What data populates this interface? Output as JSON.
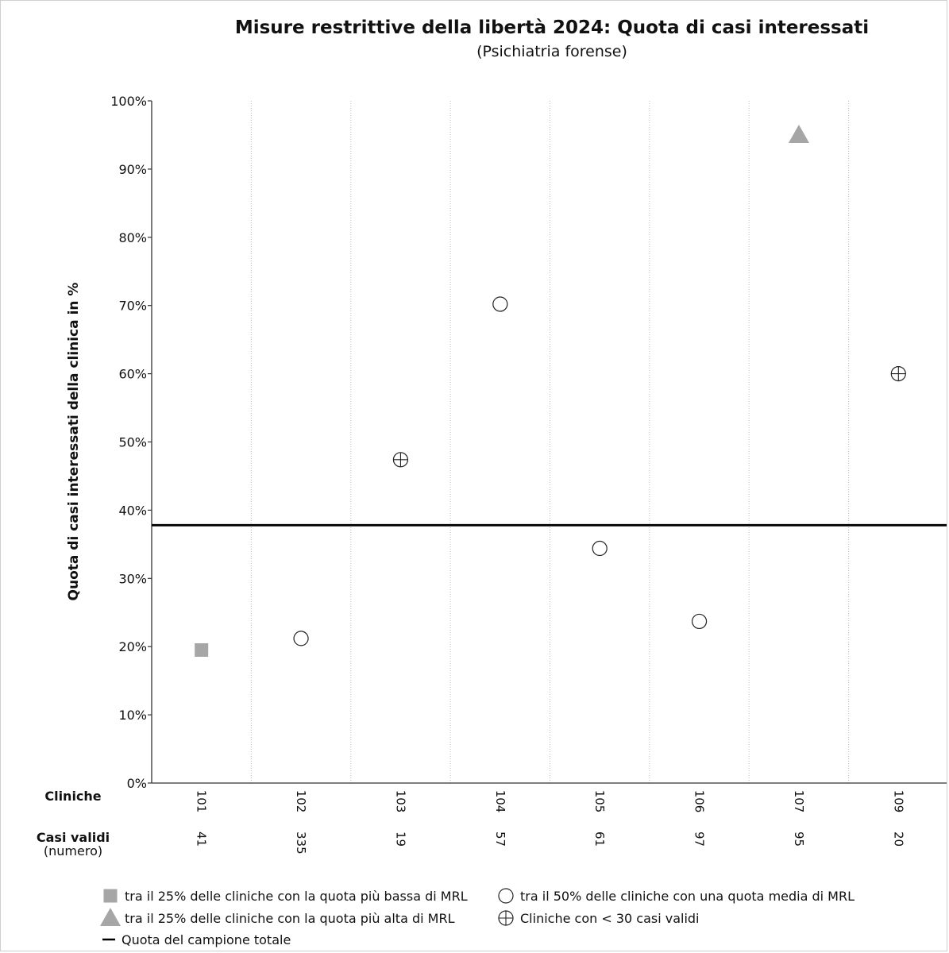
{
  "chart_data": {
    "type": "scatter",
    "title": "Misure restrittive della libertà 2024: Quota di casi interessati",
    "subtitle": "(Psichiatria forense)",
    "ylabel": "Quota di casi interessati della clinica in %",
    "ylim": [
      0,
      100
    ],
    "yticks": [
      "0%",
      "10%",
      "20%",
      "30%",
      "40%",
      "50%",
      "60%",
      "70%",
      "80%",
      "90%",
      "100%"
    ],
    "row_labels": {
      "clinics": "Cliniche",
      "cases": "Casi validi",
      "cases_sub": "(numero)"
    },
    "categories": [
      "101",
      "102",
      "103",
      "104",
      "105",
      "106",
      "107",
      "109"
    ],
    "cases": [
      "41",
      "335",
      "19",
      "57",
      "61",
      "97",
      "95",
      "20"
    ],
    "values": [
      19.5,
      21.2,
      47.4,
      70.2,
      34.4,
      23.7,
      95.0,
      60.0
    ],
    "groups": [
      "low",
      "mid",
      "few",
      "mid",
      "mid",
      "mid",
      "high",
      "few"
    ],
    "total_share": 37.8,
    "grid": "vertical dotted",
    "legend": [
      {
        "key": "low",
        "symbol": "square",
        "label": "tra il 25% delle cliniche con la quota più bassa di MRL"
      },
      {
        "key": "mid",
        "symbol": "circle",
        "label": "tra il 50% delle cliniche con una quota media di MRL"
      },
      {
        "key": "high",
        "symbol": "triangle",
        "label": "tra il 25% delle cliniche con la quota più alta di MRL"
      },
      {
        "key": "few",
        "symbol": "circle-cross",
        "label": "Cliniche con < 30 casi validi"
      },
      {
        "key": "total",
        "symbol": "line",
        "label": "Quota del campione totale"
      }
    ],
    "colors": {
      "marker_fill": "#a6a6a6",
      "line": "#000000",
      "grid": "#bdbdbd"
    }
  }
}
